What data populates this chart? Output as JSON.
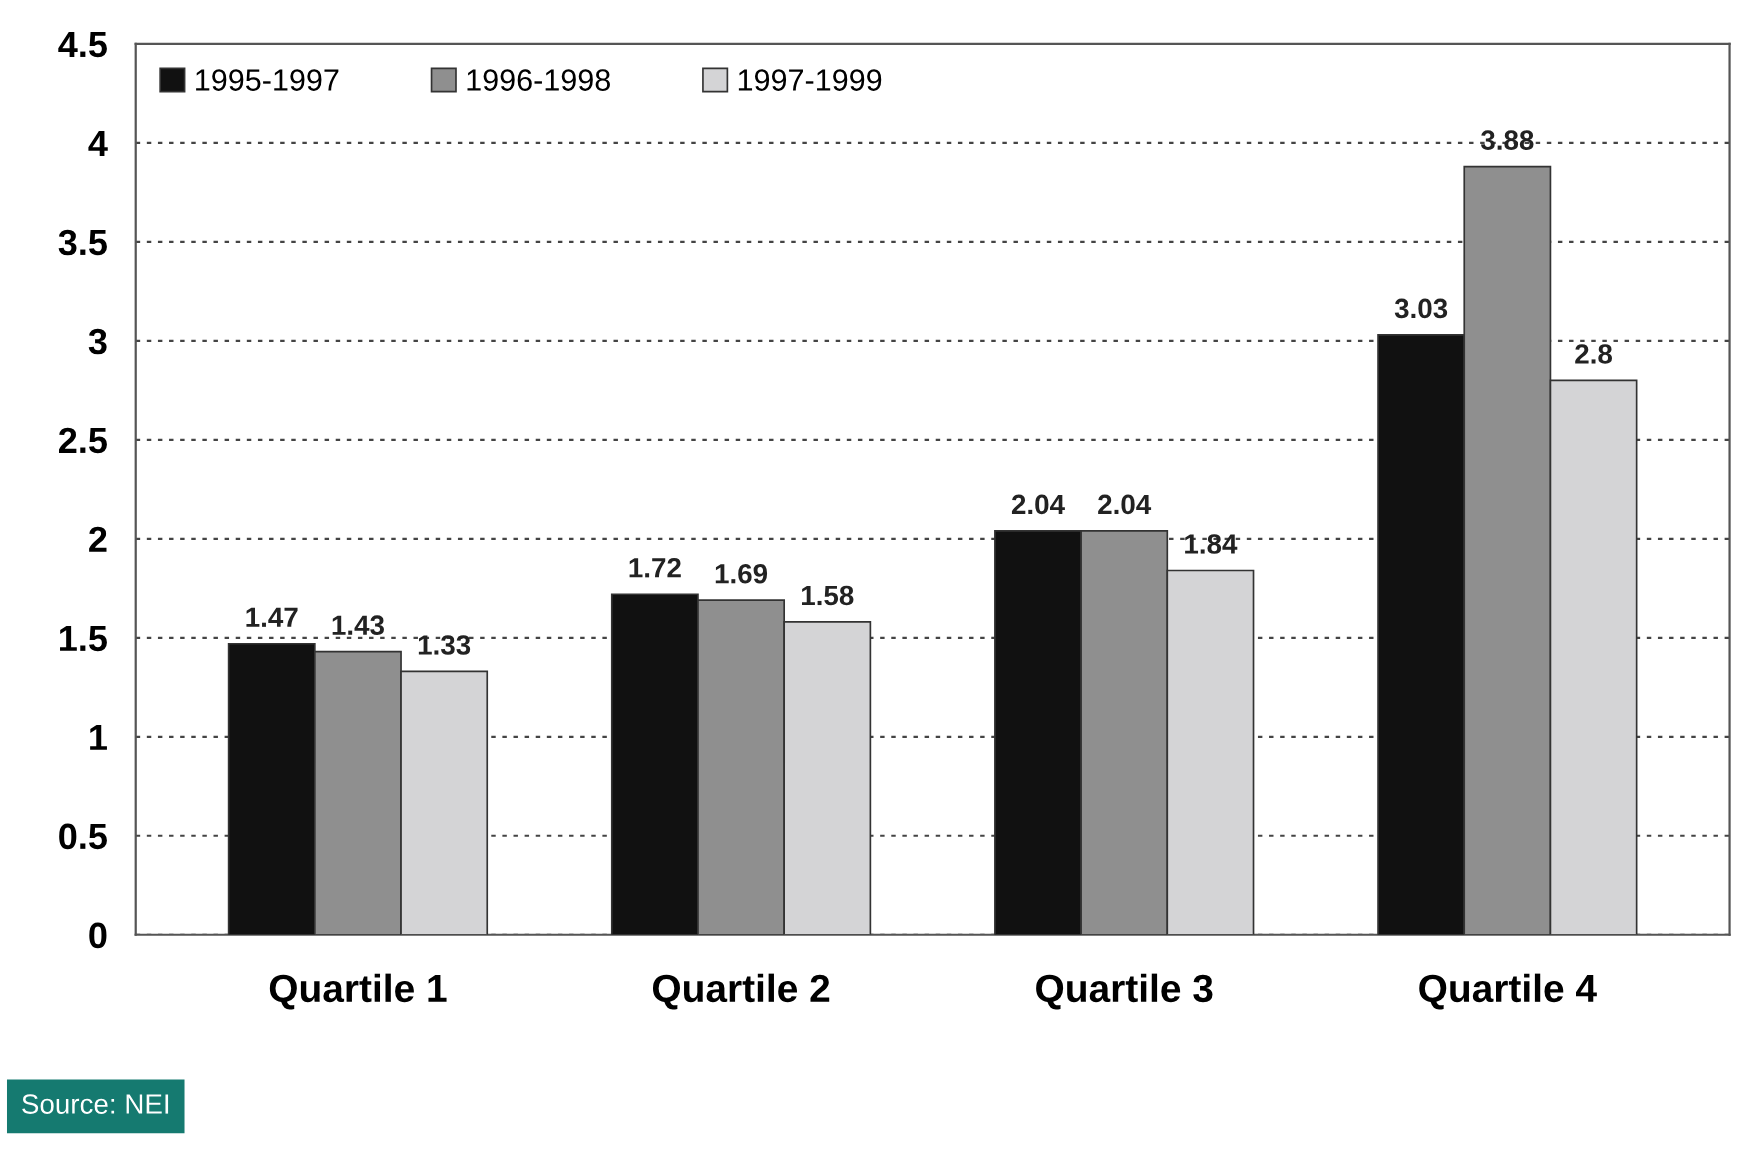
{
  "chart_data": {
    "type": "bar",
    "categories": [
      "Quartile 1",
      "Quartile 2",
      "Quartile 3",
      "Quartile 4"
    ],
    "series": [
      {
        "name": "1995-1997",
        "color": "#111111",
        "values": [
          1.47,
          1.72,
          2.04,
          3.03
        ]
      },
      {
        "name": "1996-1998",
        "color": "#8f8f8f",
        "values": [
          1.43,
          1.69,
          2.04,
          3.88
        ]
      },
      {
        "name": "1997-1999",
        "color": "#d4d4d6",
        "values": [
          1.33,
          1.58,
          1.84,
          2.8
        ]
      }
    ],
    "ylim": [
      0,
      4.5
    ],
    "yticks": [
      0,
      0.5,
      1,
      1.5,
      2,
      2.5,
      3,
      3.5,
      4,
      4.5
    ],
    "grid": "y",
    "legend": "top left",
    "data_labels": true,
    "annotations": [
      "Source: NEI"
    ]
  }
}
